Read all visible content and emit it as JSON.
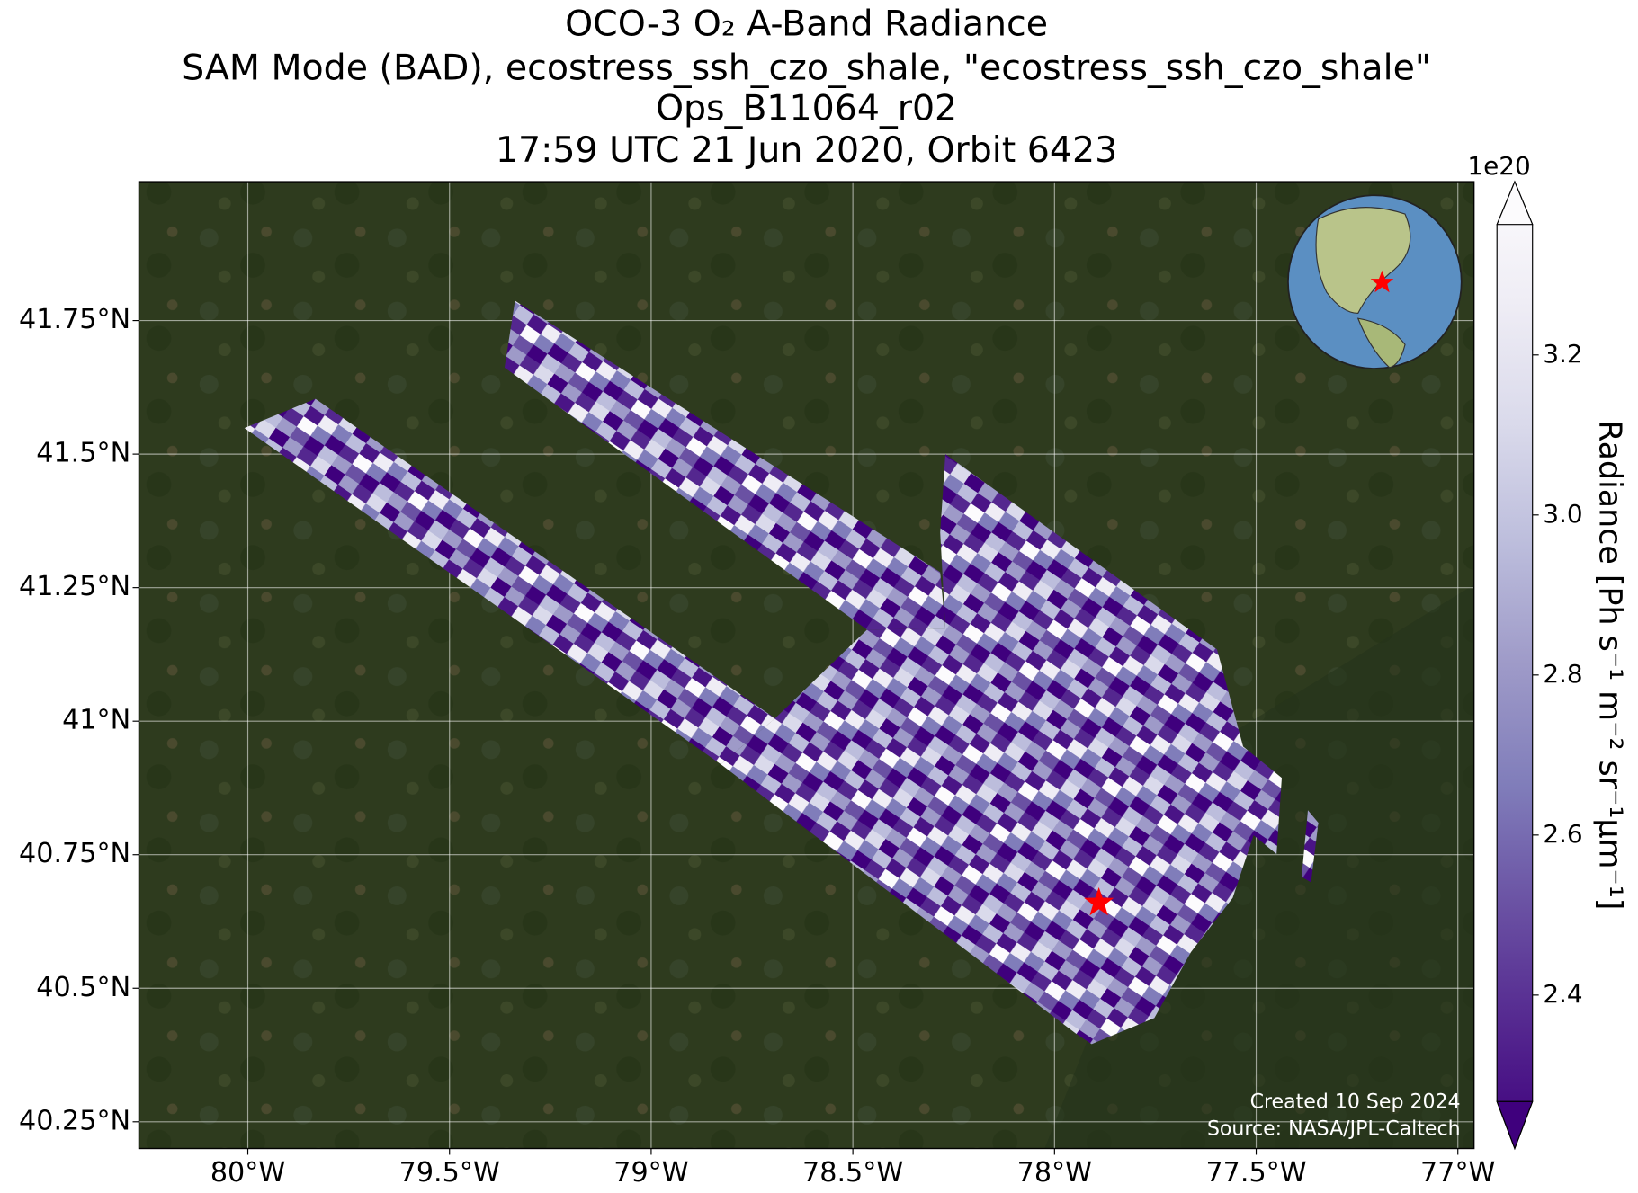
{
  "chart_data": {
    "type": "map",
    "title": [
      "OCO-3 O₂ A-Band Radiance",
      "SAM Mode (BAD), ecostress_ssh_czo_shale, \"ecostress_ssh_czo_shale\"",
      "Ops_B11064_r02",
      "17:59 UTC 21 Jun 2020, Orbit 6423"
    ],
    "xlim": [
      -80.27,
      -76.96
    ],
    "ylim": [
      40.2,
      42.01
    ],
    "xticks": [
      {
        "value": -80,
        "label": "80°W"
      },
      {
        "value": -79.5,
        "label": "79.5°W"
      },
      {
        "value": -79,
        "label": "79°W"
      },
      {
        "value": -78.5,
        "label": "78.5°W"
      },
      {
        "value": -78,
        "label": "78°W"
      },
      {
        "value": -77.5,
        "label": "77.5°W"
      },
      {
        "value": -77,
        "label": "77°W"
      }
    ],
    "yticks": [
      {
        "value": 40.25,
        "label": "40.25°N"
      },
      {
        "value": 40.5,
        "label": "40.5°N"
      },
      {
        "value": 40.75,
        "label": "40.75°N"
      },
      {
        "value": 41,
        "label": "41°N"
      },
      {
        "value": 41.25,
        "label": "41.25°N"
      },
      {
        "value": 41.5,
        "label": "41.5°N"
      },
      {
        "value": 41.75,
        "label": "41.75°N"
      }
    ],
    "grid": true,
    "colorbar": {
      "label": "Radiance [Ph s⁻¹ m⁻² sr⁻¹μm⁻¹]",
      "colormap": "Purples_r",
      "lim": [
        2.267,
        3.363
      ],
      "ticks": [
        2.4,
        2.6,
        2.8,
        {
          "value": 3,
          "label": "3.0"
        },
        3.2
      ],
      "offset_label": "1e20"
    },
    "target": {
      "lon": -77.89,
      "lat": 40.66,
      "color": "red"
    },
    "annotations": [
      "Created 10 Sep 2024",
      "Source: NASA/JPL-Caltech"
    ]
  }
}
